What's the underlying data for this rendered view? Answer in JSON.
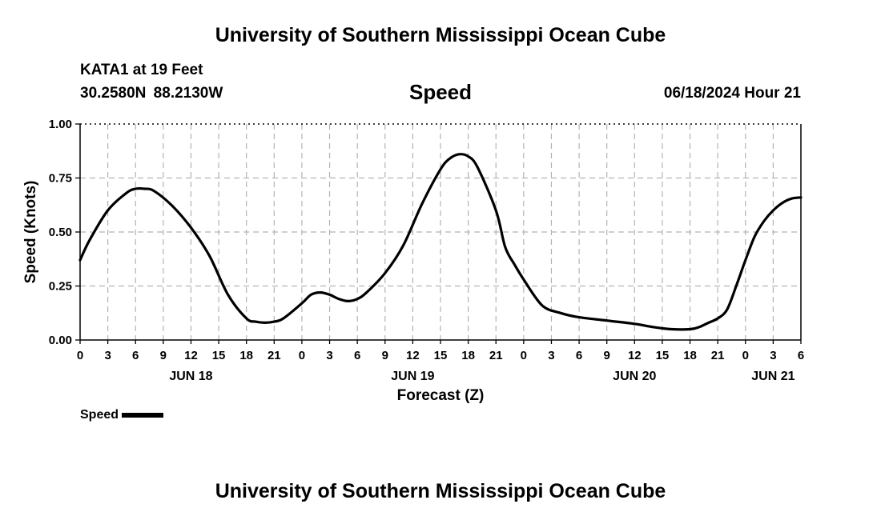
{
  "header": {
    "title": "University of Southern Mississippi Ocean Cube",
    "station": "KATA1 at 19 Feet",
    "coords": "30.2580N  88.2130W",
    "plot_title": "Speed",
    "datetime": "06/18/2024 Hour 21"
  },
  "footer": {
    "title": "University of Southern Mississippi Ocean Cube"
  },
  "legend": {
    "label": "Speed",
    "color": "#000000"
  },
  "chart_data": {
    "type": "line",
    "title": "Speed",
    "xlabel": "Forecast (Z)",
    "ylabel": "Speed (Knots)",
    "xlim": [
      0,
      78
    ],
    "ylim": [
      0,
      1.0
    ],
    "x_unit": "hours from JUN 18 00Z",
    "grid": true,
    "x_ticks": [
      0,
      3,
      6,
      9,
      12,
      15,
      18,
      21,
      24,
      27,
      30,
      33,
      36,
      39,
      42,
      45,
      48,
      51,
      54,
      57,
      60,
      63,
      66,
      69,
      72,
      75,
      78
    ],
    "x_tick_labels": [
      "0",
      "3",
      "6",
      "9",
      "12",
      "15",
      "18",
      "21",
      "0",
      "3",
      "6",
      "9",
      "12",
      "15",
      "18",
      "21",
      "0",
      "3",
      "6",
      "9",
      "12",
      "15",
      "18",
      "21",
      "0",
      "3",
      "6"
    ],
    "y_ticks": [
      0,
      0.25,
      0.5,
      0.75,
      1.0
    ],
    "y_tick_labels": [
      "0.00",
      "0.25",
      "0.50",
      "0.75",
      "1.00"
    ],
    "day_labels": [
      {
        "x": 12,
        "label": "JUN 18"
      },
      {
        "x": 36,
        "label": "JUN 19"
      },
      {
        "x": 60,
        "label": "JUN 20"
      },
      {
        "x": 75,
        "label": "JUN 21"
      }
    ],
    "series": [
      {
        "name": "Speed",
        "x": [
          0,
          1,
          3,
          5,
          6,
          7,
          8,
          10,
          12,
          14,
          16,
          18,
          19,
          20,
          21,
          22,
          24,
          25,
          26,
          27,
          28,
          29,
          30,
          31,
          33,
          35,
          37,
          39,
          40,
          41,
          42,
          43,
          45,
          46,
          47,
          48,
          50,
          52,
          54,
          57,
          60,
          62,
          64,
          66,
          67,
          68,
          69,
          70,
          71,
          72,
          73,
          74,
          75,
          76,
          77,
          78
        ],
        "values": [
          0.37,
          0.46,
          0.6,
          0.68,
          0.7,
          0.7,
          0.69,
          0.62,
          0.52,
          0.39,
          0.21,
          0.1,
          0.085,
          0.08,
          0.085,
          0.1,
          0.17,
          0.21,
          0.22,
          0.21,
          0.19,
          0.18,
          0.19,
          0.22,
          0.31,
          0.44,
          0.63,
          0.79,
          0.84,
          0.86,
          0.85,
          0.8,
          0.6,
          0.43,
          0.35,
          0.28,
          0.16,
          0.125,
          0.105,
          0.09,
          0.075,
          0.06,
          0.05,
          0.05,
          0.06,
          0.08,
          0.1,
          0.14,
          0.25,
          0.37,
          0.48,
          0.55,
          0.6,
          0.635,
          0.655,
          0.66
        ]
      }
    ]
  }
}
